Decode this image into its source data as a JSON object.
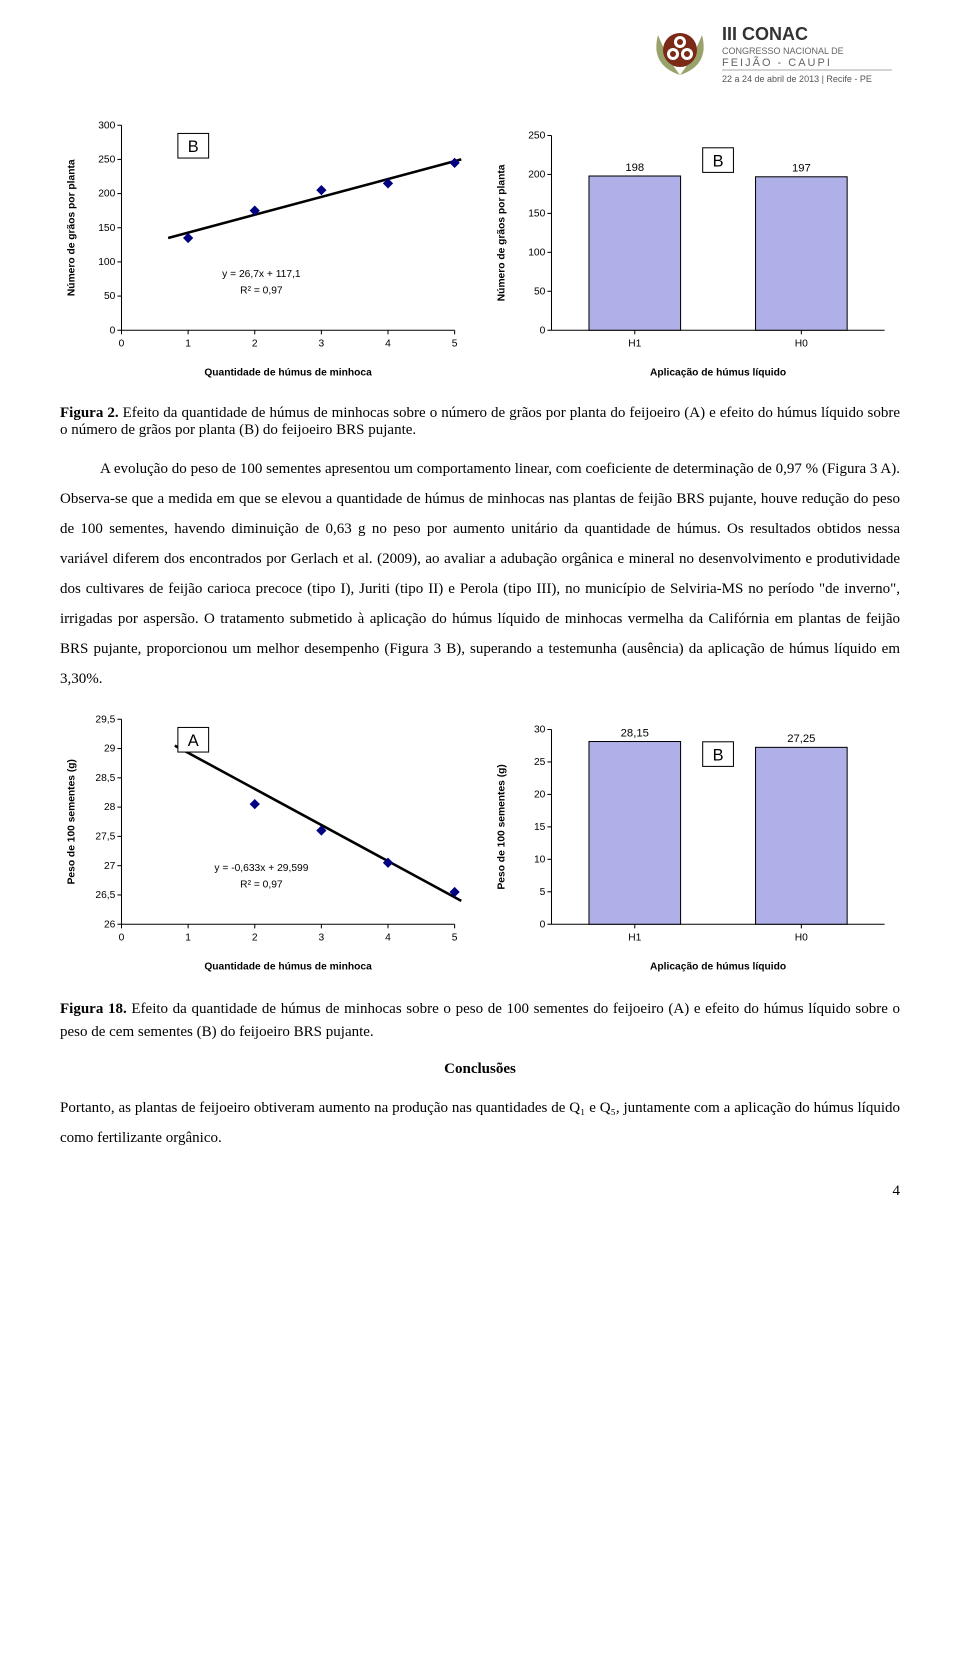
{
  "logo": {
    "title_line1": "III CONAC",
    "title_line2": "CONGRESSO NACIONAL DE",
    "title_line3": "FEIJÃO - CAUPI",
    "title_line4": "22 a 24 de abril de 2013 | Recife - PE",
    "wreath_color": "#9aa26b",
    "ball_color": "#7a2a16"
  },
  "chart_scatter_top": {
    "type": "scatter-line",
    "box_label": "B",
    "equation": "y = 26,7x + 117,1",
    "r2": "R² = 0,97",
    "xlabel": "Quantidade de húmus de minhoca",
    "ylabel": "Número de grãos por planta",
    "xlim": [
      0,
      5
    ],
    "xtick_step": 1,
    "ylim": [
      0,
      300
    ],
    "ytick_step": 50,
    "points": [
      {
        "x": 1,
        "y": 135
      },
      {
        "x": 2,
        "y": 175
      },
      {
        "x": 3,
        "y": 205
      },
      {
        "x": 4,
        "y": 215
      },
      {
        "x": 5,
        "y": 245
      }
    ],
    "trend": {
      "x1": 0.7,
      "y1": 135,
      "x2": 5.1,
      "y2": 250
    },
    "marker_color": "#000080",
    "label_fontsize": 10,
    "tick_fontsize": 10,
    "box_fontsize": 16
  },
  "chart_bar_top": {
    "type": "bar",
    "box_label": "B",
    "xlabel": "Aplicação de húmus líquido",
    "ylabel": "Número de grãos por planta",
    "categories": [
      "H1",
      "H0"
    ],
    "values": [
      198,
      197
    ],
    "ylim": [
      0,
      250
    ],
    "ytick_step": 50,
    "bar_fill": "#b0b0e8",
    "bar_stroke": "#000000",
    "label_fontsize": 10,
    "tick_fontsize": 10,
    "value_fontsize": 11,
    "box_fontsize": 16
  },
  "fig2_caption_prefix": "Figura 2.",
  "fig2_caption_text": " Efeito da quantidade de húmus de minhocas sobre o número de grãos por planta do feijoeiro (A) e efeito do húmus líquido sobre o número de grãos por planta (B) do feijoeiro BRS pujante.",
  "body_para": "A evolução do peso de 100 sementes apresentou um comportamento linear, com coeficiente de determinação de 0,97 % (Figura 3 A). Observa-se que a medida em que se elevou a quantidade de húmus de minhocas nas plantas de feijão BRS pujante, houve redução do peso de 100 sementes, havendo diminuição de 0,63 g no peso por aumento unitário da quantidade de húmus. Os resultados obtidos nessa variável diferem dos encontrados por Gerlach et al. (2009), ao avaliar a adubação orgânica e mineral no desenvolvimento e produtividade dos cultivares de feijão carioca precoce (tipo I), Juriti (tipo II) e Perola (tipo III), no município de Selviria-MS no período \"de inverno\", irrigadas por aspersão. O tratamento submetido à aplicação do húmus líquido de minhocas vermelha da Califórnia em plantas de feijão BRS pujante, proporcionou um melhor desempenho (Figura 3 B), superando a testemunha (ausência) da aplicação de húmus líquido em 3,30%.",
  "chart_scatter_bot": {
    "type": "scatter-line",
    "box_label": "A",
    "equation": "y = -0,633x + 29,599",
    "r2": "R² = 0,97",
    "xlabel": "Quantidade de húmus de minhoca",
    "ylabel": "Peso de 100 sementes (g)",
    "xlim": [
      0,
      5
    ],
    "xtick_step": 1,
    "ylim": [
      26,
      29.5
    ],
    "ytick_step": 0.5,
    "yticks": [
      "26",
      "26,5",
      "27",
      "27,5",
      "28",
      "28,5",
      "29",
      "29,5"
    ],
    "points": [
      {
        "x": 1,
        "y": 29.1
      },
      {
        "x": 2,
        "y": 28.05
      },
      {
        "x": 3,
        "y": 27.6
      },
      {
        "x": 4,
        "y": 27.05
      },
      {
        "x": 5,
        "y": 26.55
      }
    ],
    "trend": {
      "x1": 0.8,
      "y1": 29.05,
      "x2": 5.1,
      "y2": 26.4
    },
    "marker_color": "#000080",
    "label_fontsize": 10,
    "tick_fontsize": 10,
    "box_fontsize": 16
  },
  "chart_bar_bot": {
    "type": "bar",
    "box_label": "B",
    "xlabel": "Aplicação de húmus líquido",
    "ylabel": "Peso de 100 sementes (g)",
    "categories": [
      "H1",
      "H0"
    ],
    "values": [
      28.15,
      27.25
    ],
    "value_labels": [
      "28,15",
      "27,25"
    ],
    "ylim": [
      0,
      30
    ],
    "ytick_step": 5,
    "bar_fill": "#b0b0e8",
    "bar_stroke": "#000000",
    "label_fontsize": 10,
    "tick_fontsize": 10,
    "value_fontsize": 11,
    "box_fontsize": 16
  },
  "fig18_caption_prefix": "Figura 18.",
  "fig18_caption_text": " Efeito da quantidade de húmus de minhocas sobre o peso de 100 sementes do feijoeiro (A) e efeito do húmus líquido sobre o peso de cem sementes (B) do feijoeiro BRS pujante.",
  "conclusions_title": "Conclusões",
  "conclusions_para": "Portanto, as plantas de feijoeiro obtiveram aumento na produção nas quantidades de Q₁ e Q₅, juntamente com a aplicação do húmus líquido como fertilizante orgânico.",
  "page_number": "4"
}
